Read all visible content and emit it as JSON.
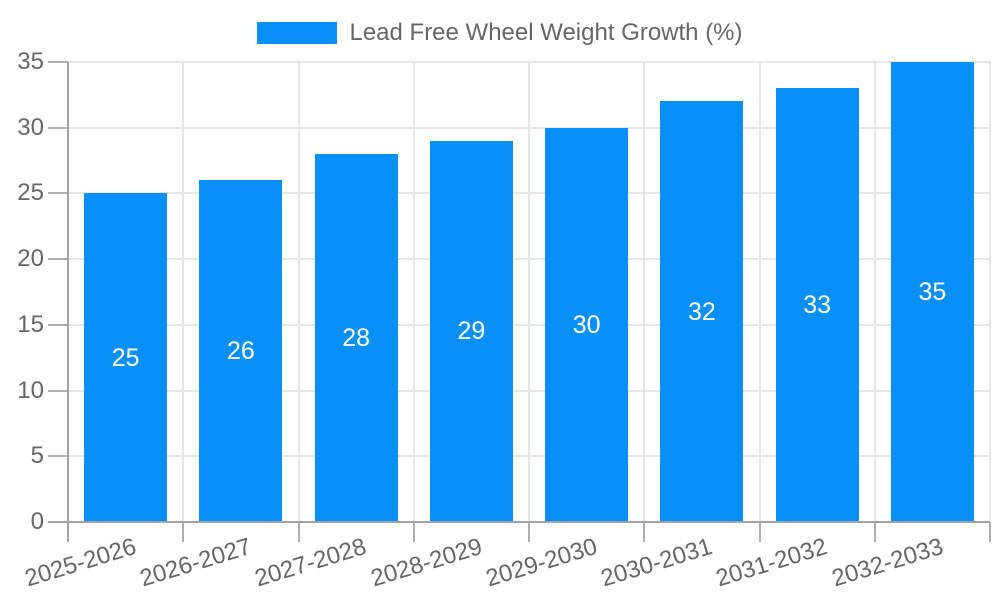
{
  "chart_data": {
    "type": "bar",
    "title": "Lead Free Wheel Weight Growth (%)",
    "categories": [
      "2025-2026",
      "2026-2027",
      "2027-2028",
      "2028-2029",
      "2029-2030",
      "2030-2031",
      "2031-2032",
      "2032-2033"
    ],
    "values": [
      25,
      26,
      28,
      29,
      30,
      32,
      33,
      35
    ],
    "xlabel": "",
    "ylabel": "",
    "ylim": [
      0,
      35
    ],
    "yticks": [
      0,
      5,
      10,
      15,
      20,
      25,
      30,
      35
    ],
    "grid": true,
    "legend_position": "top",
    "value_labels_shown": true,
    "x_label_rotation_deg": -17
  },
  "colors": {
    "background": "#FFFFFF",
    "bar": "#0890F8",
    "grid_line": "#E6E6E6",
    "axis_line": "#A3A3A3",
    "tick_mark": "#AFAFAF",
    "tick_text": "#666666",
    "legend_text": "#666666",
    "bar_value_text": "#FFFFFF"
  }
}
